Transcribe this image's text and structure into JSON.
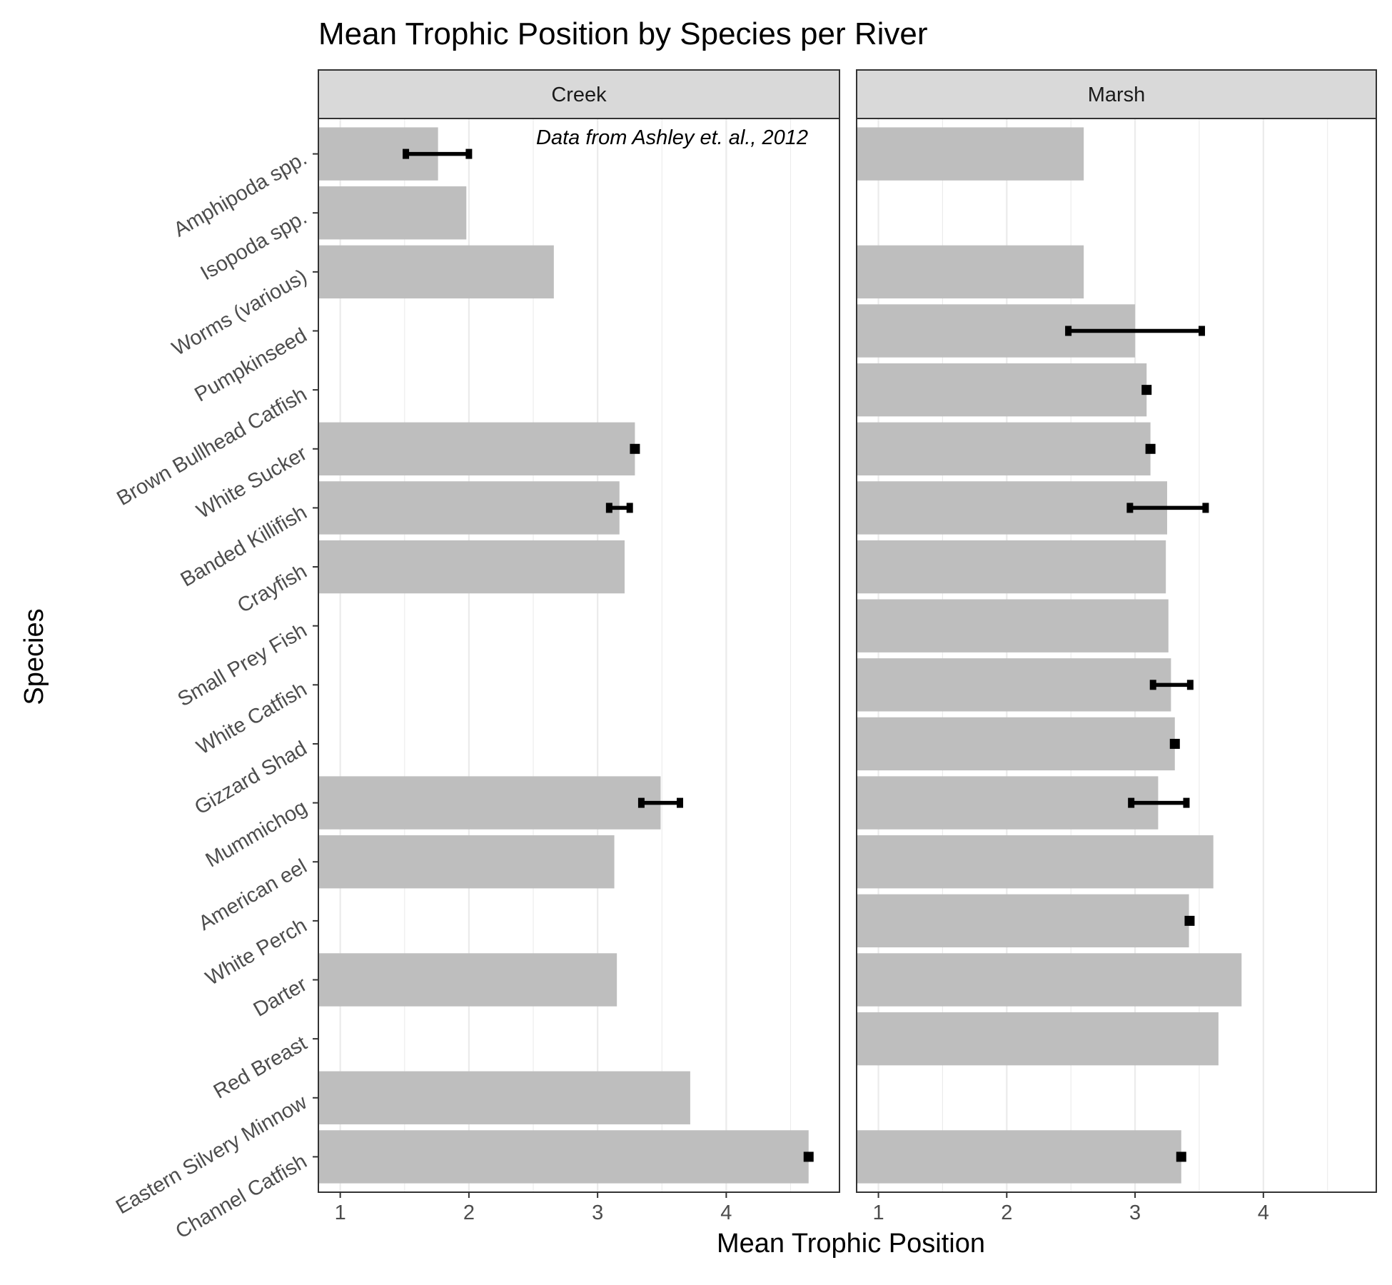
{
  "chart_data": {
    "type": "bar",
    "orientation": "horizontal",
    "title": "Mean Trophic Position by Species per River",
    "xlabel": "Mean Trophic Position",
    "ylabel": "Species",
    "annotation": "Data from Ashley et. al., 2012",
    "xlim": [
      0.83,
      4.88
    ],
    "xticks": [
      "1",
      "2",
      "3",
      "4"
    ],
    "grid": true,
    "legend": "none",
    "categories": [
      "Amphipoda spp.",
      "Isopoda spp.",
      "Worms (various)",
      "Pumpkinseed",
      "Brown Bullhead Catfish",
      "White Sucker",
      "Banded Killifish",
      "Crayfish",
      "Small Prey Fish",
      "White Catfish",
      "Gizzard Shad",
      "Mummichog",
      "American eel",
      "White Perch",
      "Darter",
      "Red Breast",
      "Eastern Silvery Minnow",
      "Channel Catfish"
    ],
    "panels": [
      {
        "name": "Creek",
        "values": [
          1.76,
          1.98,
          2.66,
          null,
          null,
          3.29,
          3.17,
          3.21,
          null,
          null,
          null,
          3.49,
          3.13,
          null,
          3.15,
          null,
          3.72,
          4.64
        ],
        "error_low": [
          1.51,
          null,
          null,
          null,
          null,
          3.27,
          3.09,
          null,
          null,
          null,
          null,
          3.34,
          null,
          null,
          null,
          null,
          null,
          4.61
        ],
        "error_high": [
          2.0,
          null,
          null,
          null,
          null,
          3.31,
          3.25,
          null,
          null,
          null,
          null,
          3.64,
          null,
          null,
          null,
          null,
          null,
          4.67
        ]
      },
      {
        "name": "Marsh",
        "values": [
          2.6,
          null,
          2.6,
          3.0,
          3.09,
          3.12,
          3.25,
          3.24,
          3.26,
          3.28,
          3.31,
          3.18,
          3.61,
          3.42,
          3.83,
          3.65,
          null,
          3.36
        ],
        "error_low": [
          null,
          null,
          null,
          2.48,
          3.07,
          3.09,
          2.96,
          null,
          null,
          3.14,
          3.29,
          2.97,
          null,
          3.41,
          null,
          null,
          null,
          3.33
        ],
        "error_high": [
          null,
          null,
          null,
          3.52,
          3.11,
          3.15,
          3.55,
          null,
          null,
          3.43,
          3.33,
          3.4,
          null,
          3.44,
          null,
          null,
          null,
          3.39
        ]
      }
    ],
    "colors": {
      "bar": "#bebebe",
      "errorbar": "#000000",
      "grid": "#ebebeb",
      "strip": "#d9d9d9",
      "border": "#333333"
    }
  }
}
